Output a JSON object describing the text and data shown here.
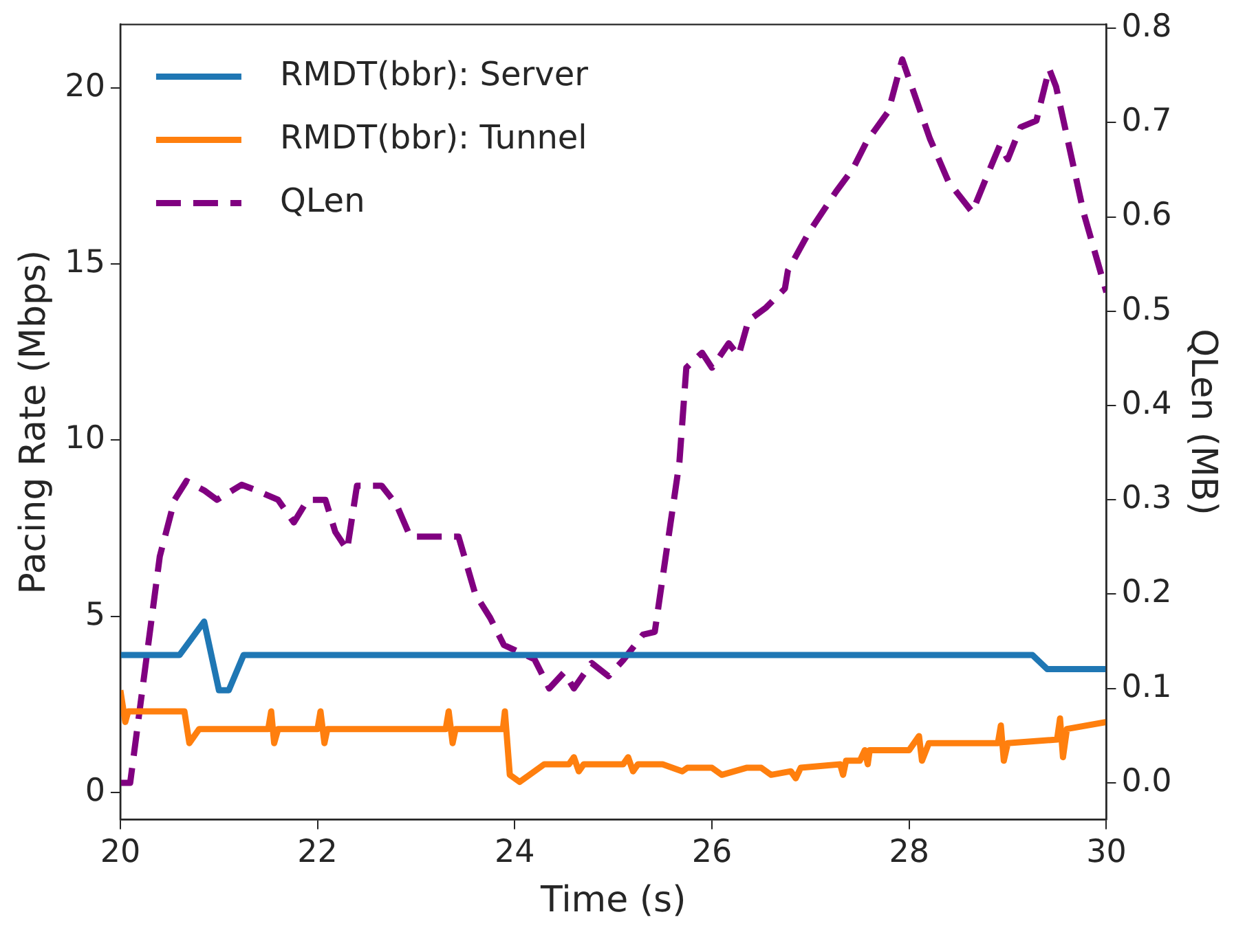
{
  "chart_data": {
    "type": "line",
    "xlabel": "Time (s)",
    "ylabel": "Pacing Rate (Mbps)",
    "y2label": "QLen (MB)",
    "xlim": [
      20,
      30
    ],
    "xticks": [
      20,
      22,
      24,
      26,
      28,
      30
    ],
    "ylim": [
      -0.77,
      21.8
    ],
    "yticks": [
      0,
      5,
      10,
      15,
      20
    ],
    "y2lim": [
      -0.039,
      0.804
    ],
    "y2ticks": [
      {
        "value": 0,
        "label": "0.0"
      },
      0.1,
      0.2,
      0.3,
      0.4,
      0.5,
      0.6,
      0.7,
      0.8
    ],
    "grid": false,
    "legend": "top left",
    "marker": "none",
    "series": [
      {
        "name": "RMDT(bbr): Server",
        "color": "#1f77b4",
        "line_style": "solid",
        "x": [
          20,
          20.6,
          20.85,
          21.0,
          21.1,
          21.25,
          29.25,
          29.4,
          30
        ],
        "values": [
          3.9,
          3.9,
          4.85,
          2.9,
          2.9,
          3.9,
          3.9,
          3.5,
          3.5
        ]
      },
      {
        "name": "RMDT(bbr): Tunnel",
        "color": "#ff7f0e",
        "line_style": "solid",
        "x": [
          20,
          20.05,
          20.08,
          20.65,
          20.7,
          20.8,
          21.5,
          21.53,
          21.56,
          21.6,
          22.0,
          22.03,
          22.07,
          22.1,
          23.3,
          23.33,
          23.37,
          23.4,
          23.88,
          23.9,
          23.95,
          24.05,
          24.3,
          24.55,
          24.6,
          24.65,
          24.7,
          25.1,
          25.15,
          25.2,
          25.25,
          25.5,
          25.7,
          25.75,
          26.0,
          26.1,
          26.35,
          26.5,
          26.6,
          26.8,
          26.85,
          26.9,
          27.3,
          27.33,
          27.36,
          27.5,
          27.55,
          27.58,
          27.6,
          28.0,
          28.1,
          28.13,
          28.2,
          28.5,
          28.9,
          28.93,
          28.96,
          29.0,
          29.5,
          29.53,
          29.56,
          29.6,
          30
        ],
        "values": [
          2.9,
          2.0,
          2.3,
          2.3,
          1.4,
          1.8,
          1.8,
          2.3,
          1.4,
          1.8,
          1.8,
          2.3,
          1.4,
          1.8,
          1.8,
          2.3,
          1.4,
          1.8,
          1.8,
          2.3,
          0.5,
          0.3,
          0.8,
          0.8,
          1.0,
          0.6,
          0.8,
          0.8,
          1.0,
          0.6,
          0.8,
          0.8,
          0.6,
          0.7,
          0.7,
          0.5,
          0.7,
          0.7,
          0.5,
          0.6,
          0.4,
          0.7,
          0.8,
          0.5,
          0.9,
          0.9,
          1.2,
          0.8,
          1.2,
          1.2,
          1.6,
          0.9,
          1.4,
          1.4,
          1.4,
          1.9,
          0.9,
          1.4,
          1.5,
          2.1,
          1.0,
          1.8,
          2.0
        ]
      },
      {
        "name": "QLen",
        "color": "#800080",
        "line_style": "dashed",
        "axis": "y2",
        "x": [
          20,
          20.1,
          20.25,
          20.4,
          20.55,
          20.67,
          20.85,
          20.98,
          21.23,
          21.38,
          21.6,
          21.76,
          21.9,
          22.08,
          22.18,
          22.3,
          22.4,
          22.65,
          22.8,
          22.94,
          23.43,
          23.6,
          23.75,
          23.89,
          24.2,
          24.35,
          24.5,
          24.6,
          24.78,
          24.95,
          25.1,
          25.3,
          25.42,
          25.67,
          25.74,
          25.9,
          26.0,
          26.17,
          26.27,
          26.37,
          26.55,
          26.74,
          26.77,
          26.98,
          27.26,
          27.43,
          27.57,
          27.79,
          27.93,
          28.21,
          28.4,
          28.64,
          28.78,
          28.92,
          29.0,
          29.13,
          29.29,
          29.42,
          29.49,
          29.77,
          30
        ],
        "values": [
          0.0,
          0.0,
          0.12,
          0.24,
          0.3,
          0.32,
          0.31,
          0.3,
          0.316,
          0.31,
          0.3,
          0.276,
          0.3,
          0.3,
          0.266,
          0.247,
          0.315,
          0.315,
          0.295,
          0.261,
          0.261,
          0.2,
          0.175,
          0.146,
          0.131,
          0.1,
          0.117,
          0.1,
          0.127,
          0.113,
          0.13,
          0.157,
          0.16,
          0.34,
          0.44,
          0.456,
          0.44,
          0.466,
          0.453,
          0.49,
          0.504,
          0.524,
          0.543,
          0.583,
          0.627,
          0.651,
          0.68,
          0.712,
          0.767,
          0.683,
          0.637,
          0.605,
          0.641,
          0.676,
          0.661,
          0.695,
          0.702,
          0.757,
          0.738,
          0.604,
          0.52
        ]
      }
    ]
  }
}
